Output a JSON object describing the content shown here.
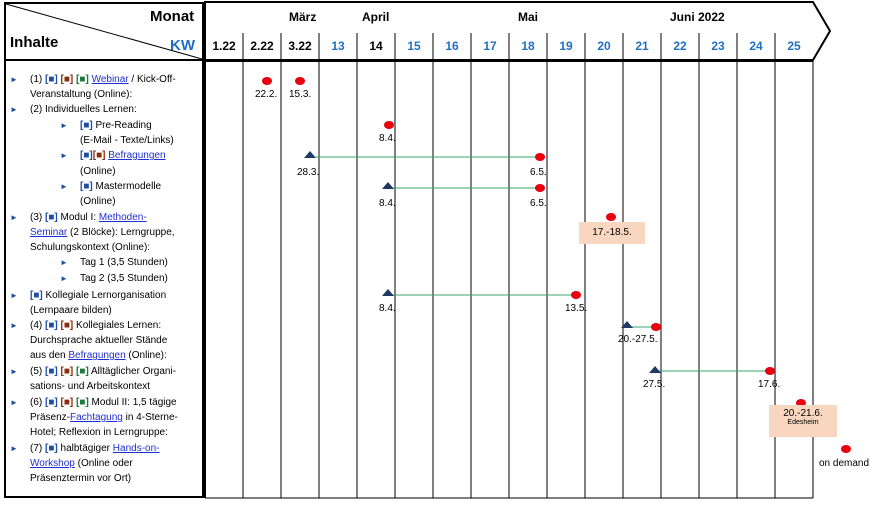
{
  "header": {
    "monat": "Monat",
    "inhalte": "Inhalte",
    "kw": "KW"
  },
  "months": [
    "März",
    "April",
    "Mai",
    "Juni 2022"
  ],
  "kw_labels": [
    "1.22",
    "2.22",
    "3.22",
    "13",
    "14",
    "15",
    "16",
    "17",
    "18",
    "19",
    "20",
    "21",
    "22",
    "23",
    "24",
    "25"
  ],
  "rows": {
    "r1a": "(1)",
    "r1_webinar": "Webinar",
    "r1b": " / Kick-Off-",
    "r1c": "Veranstaltung (Online):",
    "r2": "(2) Individuelles Lernen:",
    "r2a": "Pre-Reading",
    "r2b": "(E-Mail  - Texte/Links)",
    "r2c_link": "Befragungen",
    "r2d": "(Online)",
    "r2e": "Mastermodelle",
    "r2f": "(Online)",
    "r3a": "(3)",
    "r3b": " Modul I:  ",
    "r3_link1": "Methoden-",
    "r3_link2": "Seminar",
    "r3c": " (2 Blöcke): Lerngruppe,",
    "r3d": "Schulungskontext (Online):",
    "r3e": "Tag 1 (3,5 Stunden)",
    "r3f": "Tag 2 (3,5 Stunden)",
    "r4a": " Kollegiale Lernorganisation",
    "r4b": "(Lernpaare bilden)",
    "r5a": "(4)",
    "r5b": " Kollegiales Lernen:",
    "r5c": "Durchsprache aktueller Stände",
    "r5d": "aus den ",
    "r5_link": "Befragungen",
    "r5e": " (Online):",
    "r6a": "(5)",
    "r6b": " Alltäglicher Organi-",
    "r6c": "sations- und Arbeitskontext",
    "r7a": "(6)",
    "r7b": " Modul II:  1,5 tägige",
    "r7c": "Präsenz-",
    "r7_link": "Fachtagung",
    "r7d": " in 4-Sterne-",
    "r7e": "Hotel; Reflexion in Lerngruppe:",
    "r8a": "(7)",
    "r8b": " halbtägiger ",
    "r8_link1": "Hands-on-",
    "r8_link2": "Workshop",
    "r8c": " (Online oder",
    "r8d": "Präsenztermin vor Ort)"
  },
  "marks": [
    "■"
  ],
  "dates": {
    "d1": "22.2.",
    "d2": "15.3.",
    "d3": "8.4.",
    "d4": "28.3.",
    "d5": "6.5.",
    "d6": "8.4.",
    "d7": "6.5.",
    "d8": "17.-18.5.",
    "d9": "8.4.",
    "d10": "13.5.",
    "d11": "20.-27.5.",
    "d12": "27.5.",
    "d13": "17.6.",
    "d14": "20.-21.6.",
    "d14_sub": "Edesheim",
    "d15": "on demand"
  },
  "colors": {
    "blue": "#1f6fc5",
    "dot": "#e8000e",
    "triangle": "#1f3864",
    "line": "#3aa36a",
    "highlight": "#f8d6bf"
  }
}
